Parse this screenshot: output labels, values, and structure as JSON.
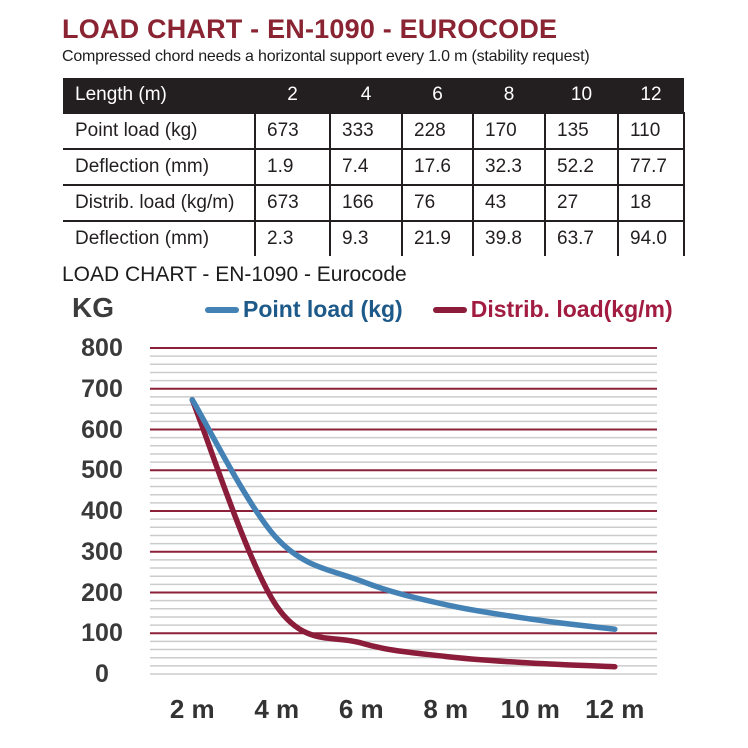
{
  "header": {
    "title": "LOAD CHART - EN-1090 - EUROCODE",
    "subtitle": "Compressed chord needs a horizontal support every 1.0 m (stability request)"
  },
  "table": {
    "header": [
      "Length (m)",
      "2",
      "4",
      "6",
      "8",
      "10",
      "12"
    ],
    "rows": [
      {
        "label": "Point load (kg)",
        "values": [
          "673",
          "333",
          "228",
          "170",
          "135",
          "110"
        ]
      },
      {
        "label": "Deflection (mm)",
        "values": [
          "1.9",
          "7.4",
          "17.6",
          "32.3",
          "52.2",
          "77.7"
        ]
      },
      {
        "label": "Distrib. load (kg/m)",
        "values": [
          "673",
          "166",
          "76",
          "43",
          "27",
          "18"
        ]
      },
      {
        "label": "Deflection (mm)",
        "values": [
          "2.3",
          "9.3",
          "21.9",
          "39.8",
          "63.7",
          "94.0"
        ]
      }
    ]
  },
  "chart": {
    "title": "LOAD CHART - EN-1090 - Eurocode",
    "y_axis_label": "KG",
    "legend": [
      {
        "label": "Point load (kg)",
        "line_color": "#4482b6",
        "text_color": "#1d5a8a"
      },
      {
        "label": "Distrib. load(kg/m)",
        "line_color": "#8b1c3a",
        "text_color": "#a11c40"
      }
    ]
  },
  "chart_data": {
    "type": "line",
    "categories": [
      "2 m",
      "4 m",
      "6 m",
      "8 m",
      "10 m",
      "12 m"
    ],
    "series": [
      {
        "name": "Point load (kg)",
        "values": [
          673,
          333,
          228,
          170,
          135,
          110
        ],
        "color": "#4482b6"
      },
      {
        "name": "Distrib. load(kg/m)",
        "values": [
          673,
          166,
          76,
          43,
          27,
          18
        ],
        "color": "#8b1c3a"
      }
    ],
    "title": "LOAD CHART - EN-1090 - Eurocode",
    "xlabel": "",
    "ylabel": "KG",
    "ylim": [
      0,
      800
    ],
    "ytick_major": 100,
    "ytick_minor": 20,
    "grid": {
      "major_color": "#8b2038",
      "minor_color": "#cccccc",
      "on": true
    },
    "legend_position": "top",
    "line_style": "smooth"
  }
}
